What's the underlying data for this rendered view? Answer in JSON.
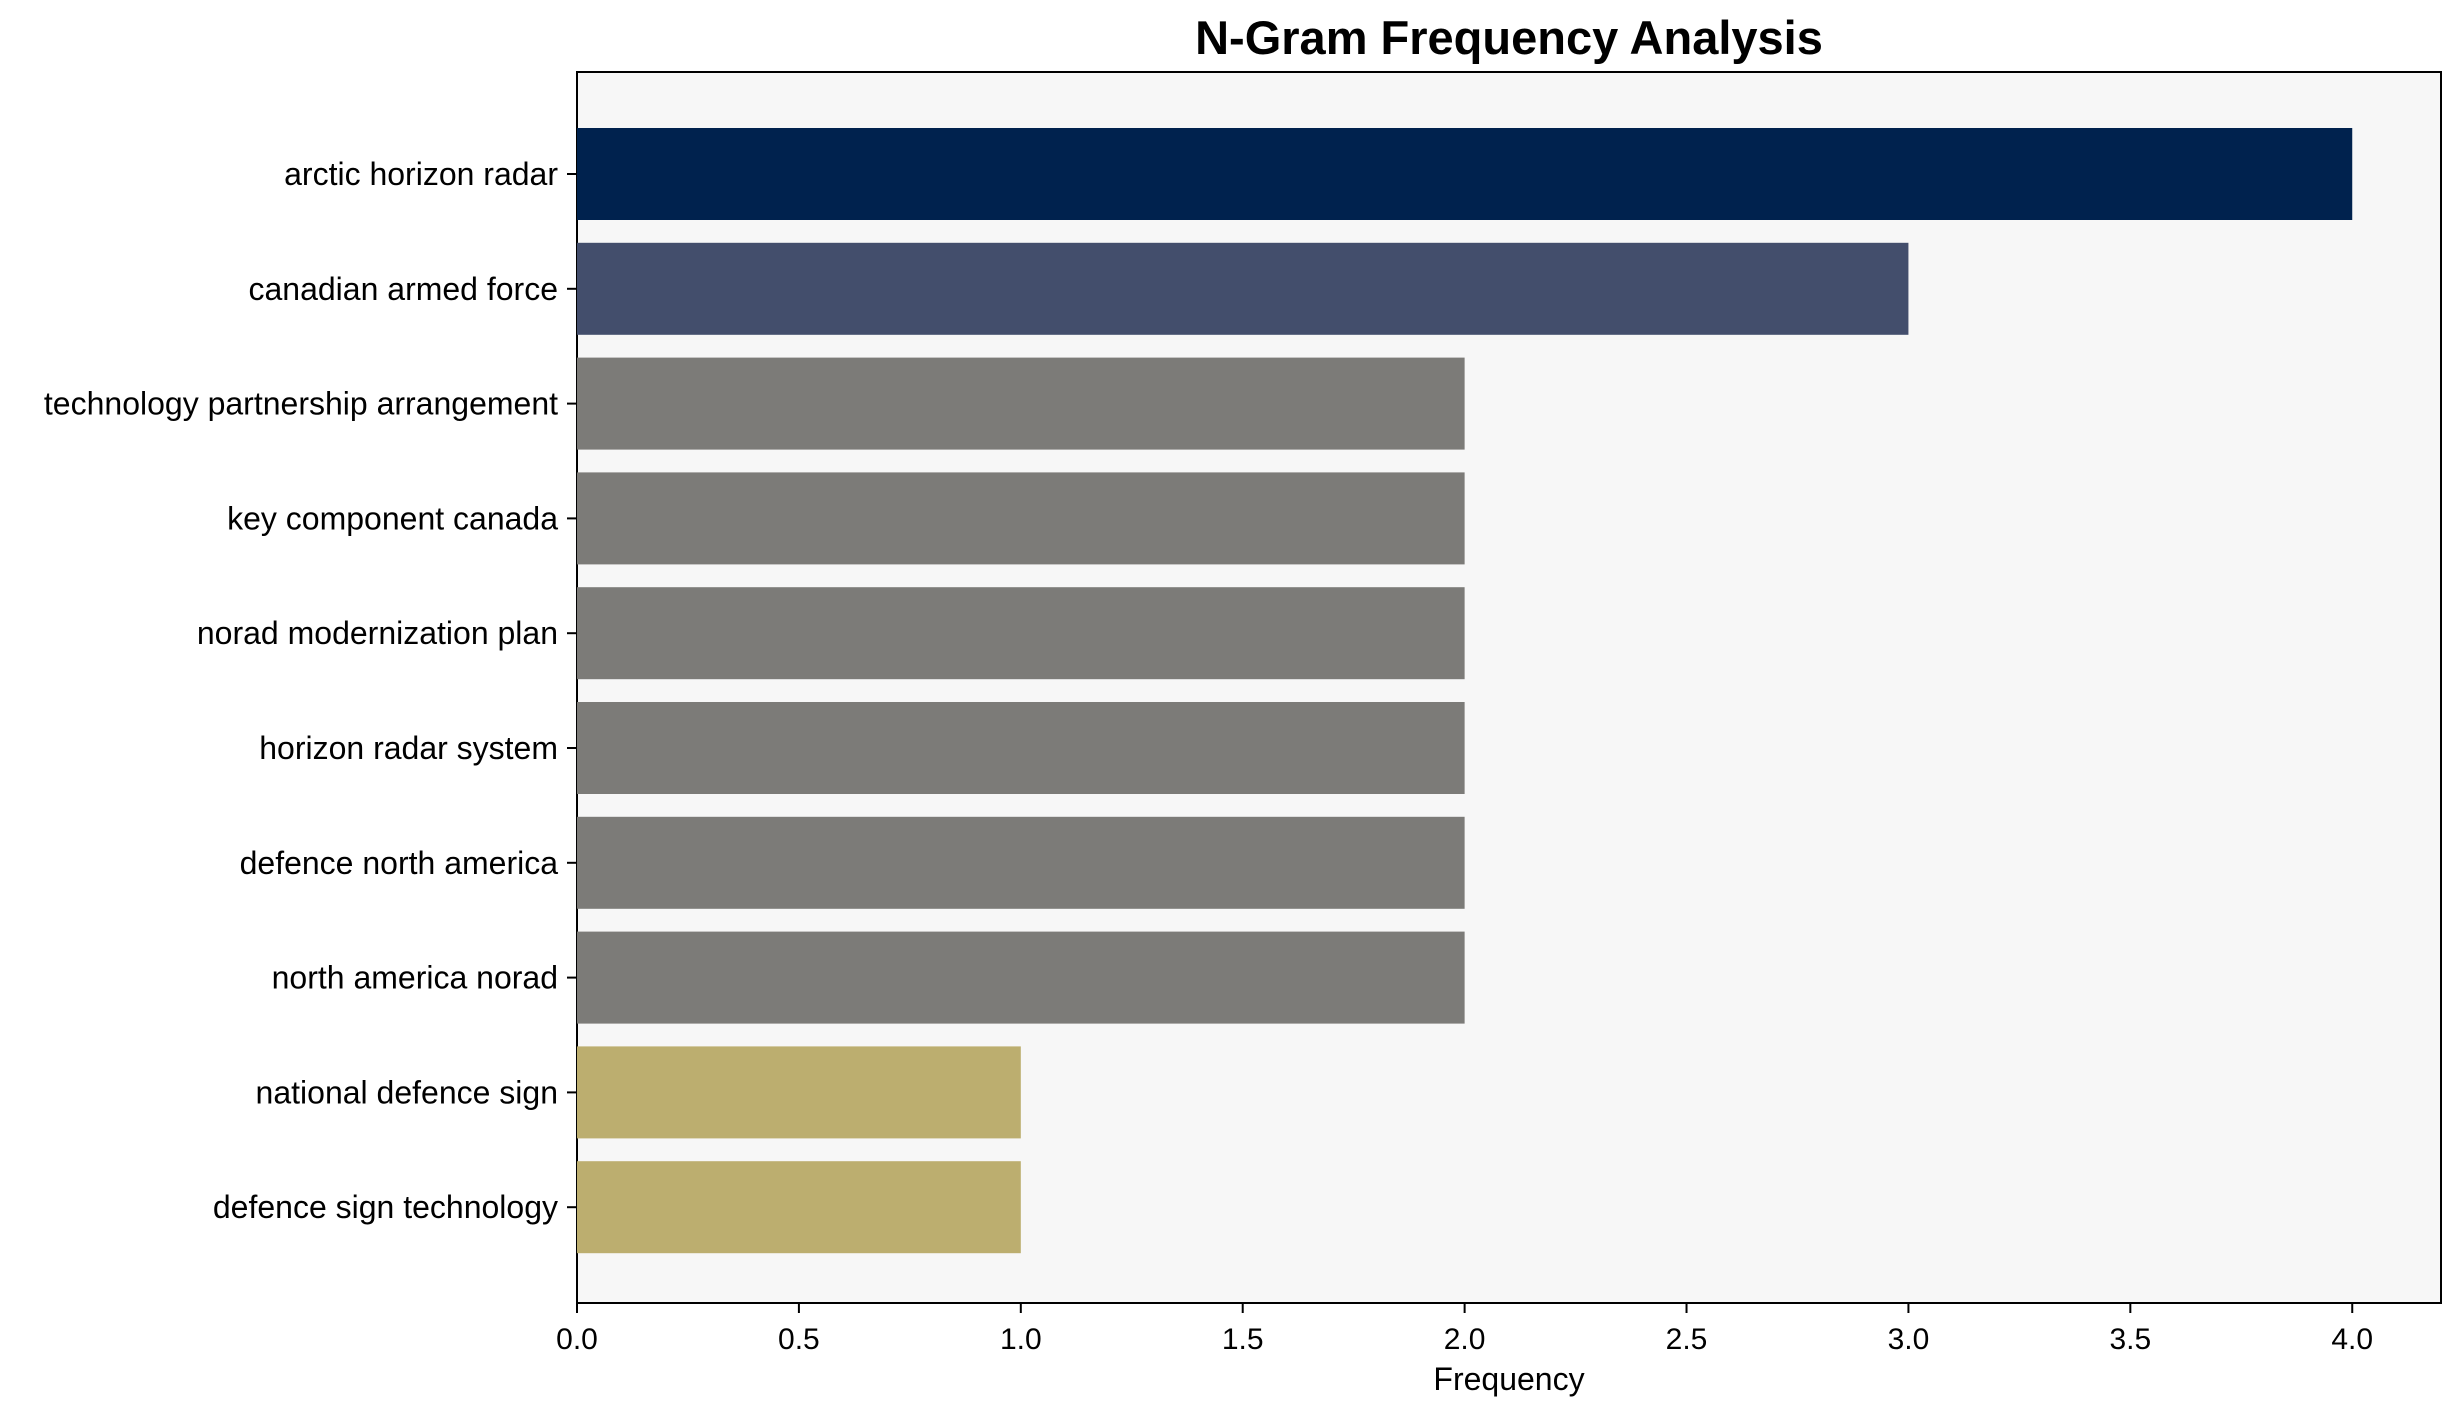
{
  "chart_data": {
    "type": "bar",
    "orientation": "horizontal",
    "title": "N-Gram Frequency Analysis",
    "xlabel": "Frequency",
    "ylabel": "",
    "xlim": [
      0,
      4.2
    ],
    "x_ticks": [
      "0.0",
      "0.5",
      "1.0",
      "1.5",
      "2.0",
      "2.5",
      "3.0",
      "3.5",
      "4.0"
    ],
    "grid": false,
    "background": "#f7f7f7",
    "categories": [
      "arctic horizon radar",
      "canadian armed force",
      "technology partnership arrangement",
      "key component canada",
      "norad modernization plan",
      "horizon radar system",
      "defence north america",
      "north america norad",
      "national defence sign",
      "defence sign technology"
    ],
    "values": [
      4,
      3,
      2,
      2,
      2,
      2,
      2,
      2,
      1,
      1
    ],
    "colors": [
      "#00224e",
      "#434e6c",
      "#7c7b78",
      "#7c7b78",
      "#7c7b78",
      "#7c7b78",
      "#7c7b78",
      "#7c7b78",
      "#bcae6f",
      "#bcae6f"
    ]
  }
}
